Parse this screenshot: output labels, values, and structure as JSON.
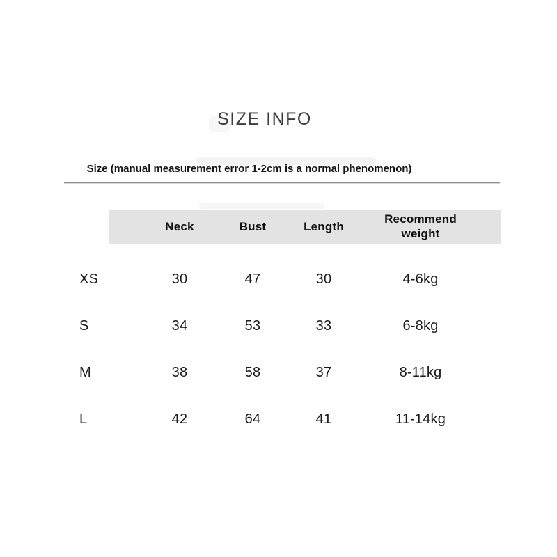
{
  "page": {
    "title": "SIZE INFO",
    "note": "Size (manual measurement error 1-2cm is a normal phenomenon)"
  },
  "table": {
    "columns": [
      "Neck",
      "Bust",
      "Length",
      "Recommend weight"
    ],
    "rows": [
      {
        "size": "XS",
        "neck": "30",
        "bust": "47",
        "length": "30",
        "weight": "4-6kg"
      },
      {
        "size": "S",
        "neck": "34",
        "bust": "53",
        "length": "33",
        "weight": "6-8kg"
      },
      {
        "size": "M",
        "neck": "38",
        "bust": "58",
        "length": "37",
        "weight": "8-11kg"
      },
      {
        "size": "L",
        "neck": "42",
        "bust": "64",
        "length": "41",
        "weight": "11-14kg"
      }
    ]
  },
  "colors": {
    "header_bg": "#e3e3e3",
    "divider": "#8f8f8f",
    "text": "#1b1b1b",
    "title_text": "#3c3c3c"
  }
}
